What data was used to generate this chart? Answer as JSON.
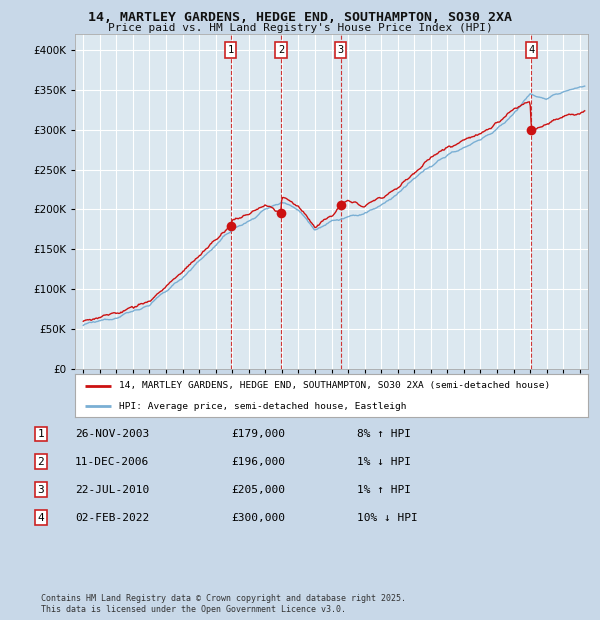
{
  "title_line1": "14, MARTLEY GARDENS, HEDGE END, SOUTHAMPTON, SO30 2XA",
  "title_line2": "Price paid vs. HM Land Registry's House Price Index (HPI)",
  "background_color": "#c8d8e8",
  "plot_bg_color": "#dce8f0",
  "grid_color": "#ffffff",
  "red_line_label": "14, MARTLEY GARDENS, HEDGE END, SOUTHAMPTON, SO30 2XA (semi-detached house)",
  "blue_line_label": "HPI: Average price, semi-detached house, Eastleigh",
  "transactions": [
    {
      "num": 1,
      "date": "26-NOV-2003",
      "price": 179000,
      "pct": "8%",
      "dir": "↑",
      "x_year": 2003.9
    },
    {
      "num": 2,
      "date": "11-DEC-2006",
      "price": 196000,
      "pct": "1%",
      "dir": "↓",
      "x_year": 2006.95
    },
    {
      "num": 3,
      "date": "22-JUL-2010",
      "price": 205000,
      "pct": "1%",
      "dir": "↑",
      "x_year": 2010.55
    },
    {
      "num": 4,
      "date": "02-FEB-2022",
      "price": 300000,
      "pct": "10%",
      "dir": "↓",
      "x_year": 2022.08
    }
  ],
  "footer": "Contains HM Land Registry data © Crown copyright and database right 2025.\nThis data is licensed under the Open Government Licence v3.0.",
  "ylim": [
    0,
    420000
  ],
  "xlim_start": 1994.5,
  "xlim_end": 2025.5,
  "yticks": [
    0,
    50000,
    100000,
    150000,
    200000,
    250000,
    300000,
    350000,
    400000
  ]
}
